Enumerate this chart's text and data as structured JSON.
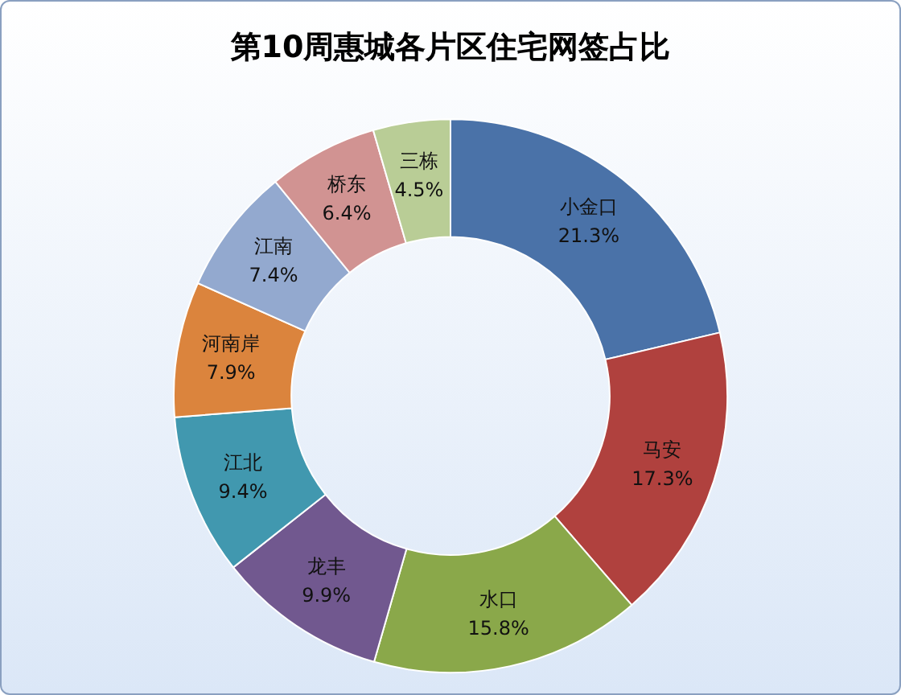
{
  "chart_data": {
    "type": "donut",
    "title": "第10周惠城各片区住宅网签占比",
    "categories": [
      "小金口",
      "马安",
      "水口",
      "龙丰",
      "江北",
      "河南岸",
      "江南",
      "桥东",
      "三栋"
    ],
    "values": [
      21.3,
      17.3,
      15.8,
      9.9,
      9.4,
      7.9,
      7.4,
      6.4,
      4.5
    ],
    "colors": [
      "#4a72a8",
      "#b0413e",
      "#8aa84a",
      "#71588f",
      "#4198af",
      "#db843d",
      "#93a9cf",
      "#d19392",
      "#b9cd96"
    ],
    "value_labels": [
      "21.3%",
      "17.3%",
      "15.8%",
      "9.9%",
      "9.4%",
      "7.9%",
      "7.4%",
      "6.4%",
      "4.5%"
    ],
    "legend": false
  }
}
